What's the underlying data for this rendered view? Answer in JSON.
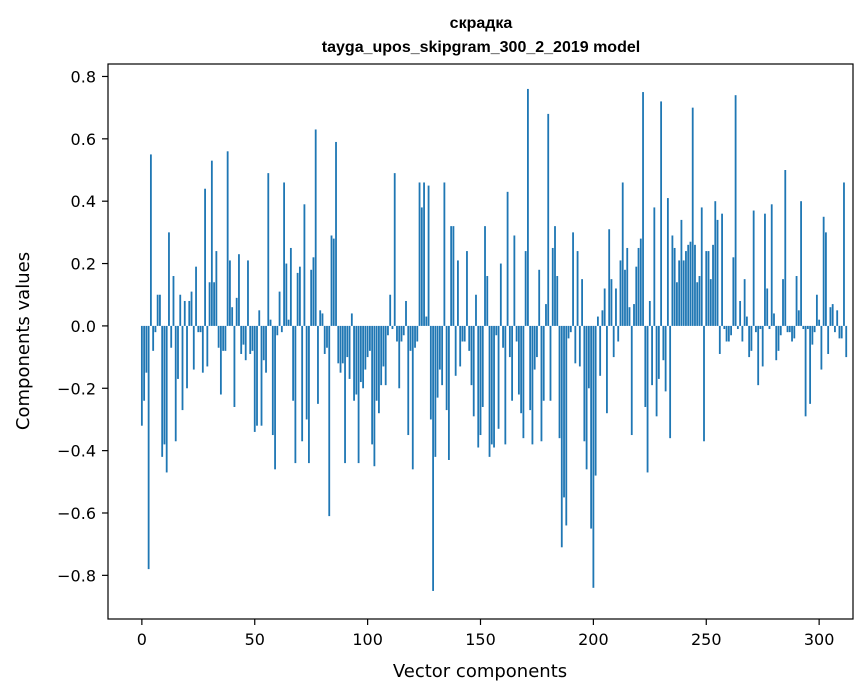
{
  "chart_data": {
    "type": "bar",
    "title": "скрадка",
    "subtitle": "tayga_upos_skipgram_300_2_2019 model",
    "xlabel": "Vector components",
    "ylabel": "Components values",
    "xlim": [
      -15,
      315
    ],
    "ylim": [
      -0.94,
      0.84
    ],
    "xticks": [
      0,
      50,
      100,
      150,
      200,
      250,
      300
    ],
    "yticks": [
      -0.8,
      -0.6,
      -0.4,
      -0.2,
      0.0,
      0.2,
      0.4,
      0.6,
      0.8
    ],
    "ytick_labels": [
      "−0.8",
      "−0.6",
      "−0.4",
      "−0.2",
      "0.0",
      "0.2",
      "0.4",
      "0.6",
      "0.8"
    ],
    "grid": false,
    "bar_color": "#1f77b4",
    "values": [
      -0.32,
      -0.24,
      -0.15,
      -0.78,
      0.55,
      -0.08,
      -0.02,
      0.1,
      0.1,
      -0.42,
      -0.38,
      -0.47,
      0.3,
      -0.07,
      0.16,
      -0.37,
      -0.17,
      0.1,
      -0.27,
      0.08,
      -0.2,
      0.08,
      0.11,
      -0.14,
      0.19,
      -0.02,
      -0.02,
      -0.15,
      0.44,
      -0.13,
      0.14,
      0.53,
      0.14,
      0.24,
      -0.07,
      -0.22,
      -0.08,
      -0.08,
      0.56,
      0.21,
      0.06,
      -0.26,
      0.09,
      0.23,
      -0.09,
      -0.06,
      -0.11,
      0.21,
      -0.09,
      -0.08,
      -0.34,
      -0.32,
      0.05,
      -0.32,
      -0.11,
      -0.15,
      0.49,
      0.02,
      -0.35,
      -0.46,
      -0.03,
      0.11,
      -0.02,
      0.46,
      0.2,
      0.02,
      0.25,
      -0.24,
      -0.44,
      0.17,
      0.19,
      -0.37,
      0.39,
      -0.3,
      -0.44,
      0.18,
      0.22,
      0.63,
      -0.25,
      0.05,
      0.04,
      -0.09,
      -0.07,
      -0.61,
      0.29,
      0.28,
      0.59,
      -0.12,
      -0.15,
      -0.12,
      -0.44,
      -0.1,
      -0.17,
      0.04,
      -0.24,
      -0.22,
      -0.44,
      -0.18,
      -0.2,
      -0.14,
      -0.1,
      -0.08,
      -0.38,
      -0.45,
      -0.24,
      -0.28,
      -0.19,
      -0.13,
      -0.19,
      -0.03,
      0.1,
      -0.01,
      0.49,
      -0.05,
      -0.2,
      -0.05,
      -0.03,
      0.08,
      -0.35,
      -0.08,
      -0.46,
      -0.07,
      -0.05,
      0.46,
      0.38,
      0.46,
      0.03,
      0.45,
      -0.3,
      -0.85,
      -0.42,
      -0.23,
      -0.14,
      -0.19,
      0.46,
      -0.27,
      -0.43,
      0.32,
      0.32,
      -0.16,
      0.21,
      -0.13,
      -0.05,
      -0.05,
      0.24,
      -0.08,
      -0.19,
      -0.29,
      0.1,
      -0.39,
      -0.35,
      -0.26,
      0.32,
      0.16,
      -0.42,
      -0.38,
      -0.39,
      -0.03,
      -0.33,
      0.2,
      -0.07,
      -0.38,
      0.43,
      -0.1,
      -0.24,
      0.29,
      -0.05,
      -0.22,
      -0.28,
      -0.36,
      0.24,
      0.76,
      -0.27,
      -0.38,
      -0.14,
      -0.1,
      0.18,
      -0.37,
      -0.24,
      0.07,
      0.68,
      -0.24,
      0.25,
      0.32,
      0.16,
      -0.36,
      -0.71,
      -0.55,
      -0.64,
      -0.04,
      -0.02,
      0.3,
      -0.12,
      0.24,
      -0.13,
      0.15,
      -0.37,
      -0.46,
      -0.2,
      -0.65,
      -0.84,
      -0.48,
      0.03,
      -0.16,
      0.05,
      0.12,
      -0.28,
      0.31,
      0.15,
      -0.1,
      0.12,
      -0.05,
      0.21,
      0.46,
      0.18,
      0.25,
      0.06,
      -0.35,
      0.07,
      0.19,
      0.25,
      0.28,
      0.75,
      -0.26,
      -0.47,
      0.08,
      -0.19,
      0.38,
      -0.29,
      -0.17,
      0.72,
      -0.11,
      -0.21,
      0.41,
      -0.36,
      0.29,
      0.25,
      0.14,
      0.21,
      0.34,
      0.21,
      0.24,
      0.26,
      0.27,
      0.7,
      0.26,
      0.14,
      0.16,
      0.38,
      -0.37,
      0.24,
      0.24,
      0.15,
      0.26,
      0.4,
      0.34,
      -0.09,
      0.36,
      -0.01,
      -0.05,
      -0.05,
      -0.03,
      0.22,
      0.74,
      -0.01,
      0.08,
      -0.05,
      0.15,
      0.03,
      -0.1,
      -0.08,
      0.37,
      -0.02,
      -0.19,
      -0.01,
      -0.13,
      0.36,
      0.12,
      -0.01,
      0.39,
      0.04,
      -0.11,
      -0.08,
      -0.03,
      0.15,
      0.5,
      -0.02,
      -0.02,
      -0.05,
      -0.04,
      0.16,
      0.05,
      0.4,
      -0.01,
      -0.29,
      -0.01,
      -0.25,
      -0.06,
      -0.02,
      0.1,
      0.02,
      -0.14,
      0.35,
      0.3,
      -0.09,
      0.06,
      0.07,
      -0.02,
      0.05,
      -0.04,
      -0.04,
      0.46,
      -0.1
    ]
  }
}
